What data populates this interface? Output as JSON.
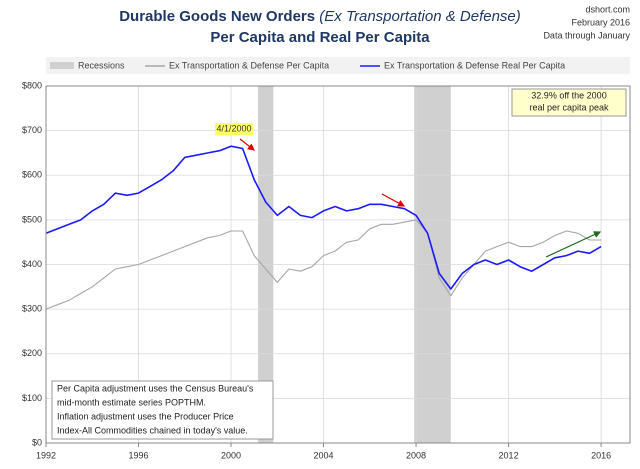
{
  "chart_data": {
    "type": "line",
    "title": "Durable Goods New Orders",
    "title_italic": "(Ex Transportation & Defense)",
    "subtitle": "Per Capita and Real Per Capita",
    "source_lines": [
      "dshort.com",
      "February 2016",
      "Data through January"
    ],
    "recession_label": "Recessions",
    "recessions": [
      [
        2001.17,
        2001.83
      ],
      [
        2007.92,
        2009.5
      ]
    ],
    "x": [
      1992,
      1992.5,
      1993,
      1993.5,
      1994,
      1994.5,
      1995,
      1995.5,
      1996,
      1996.5,
      1997,
      1997.5,
      1998,
      1998.5,
      1999,
      1999.5,
      2000,
      2000.5,
      2001,
      2001.5,
      2002,
      2002.5,
      2003,
      2003.5,
      2004,
      2004.5,
      2005,
      2005.5,
      2006,
      2006.5,
      2007,
      2007.5,
      2008,
      2008.5,
      2009,
      2009.5,
      2010,
      2010.5,
      2011,
      2011.5,
      2012,
      2012.5,
      2013,
      2013.5,
      2014,
      2014.5,
      2015,
      2015.5,
      2016
    ],
    "series": [
      {
        "name": "Ex Transportation & Defense Per Capita",
        "color": "#a6a6a6",
        "values": [
          300,
          310,
          320,
          335,
          350,
          370,
          390,
          395,
          400,
          410,
          420,
          430,
          440,
          450,
          460,
          465,
          475,
          475,
          420,
          390,
          360,
          390,
          385,
          395,
          420,
          430,
          450,
          455,
          480,
          490,
          490,
          495,
          500,
          470,
          370,
          330,
          370,
          400,
          430,
          440,
          450,
          440,
          440,
          450,
          465,
          475,
          470,
          455,
          455
        ]
      },
      {
        "name": "Ex Transportation & Defense Real Per Capita",
        "color": "#1a1aff",
        "values": [
          470,
          480,
          490,
          500,
          520,
          535,
          560,
          555,
          560,
          575,
          590,
          610,
          640,
          645,
          650,
          655,
          665,
          660,
          590,
          540,
          510,
          530,
          510,
          505,
          520,
          530,
          520,
          525,
          535,
          535,
          530,
          525,
          510,
          470,
          380,
          345,
          380,
          400,
          410,
          400,
          410,
          395,
          385,
          400,
          415,
          420,
          430,
          425,
          440
        ]
      }
    ],
    "xlim": [
      1992,
      2017.25
    ],
    "xticks": [
      1992,
      1996,
      2000,
      2004,
      2008,
      2012,
      2016
    ],
    "ylim": [
      0,
      800
    ],
    "yticks": [
      {
        "value": 0,
        "label": "$0"
      },
      {
        "value": 100,
        "label": "$100"
      },
      {
        "value": 200,
        "label": "$200"
      },
      {
        "value": 300,
        "label": "$300"
      },
      {
        "value": 400,
        "label": "$400"
      },
      {
        "value": 500,
        "label": "$500"
      },
      {
        "value": 600,
        "label": "$600"
      },
      {
        "value": 700,
        "label": "$700"
      },
      {
        "value": 800,
        "label": "$800"
      }
    ],
    "grid": true,
    "peak_label": "4/1/2000",
    "callout_lines": [
      "32.9% off the 2000",
      "real per capita peak"
    ],
    "footnote_lines": [
      "Per Capita adjustment uses the Census Bureau's",
      "mid-month estimate series POPTHM.",
      "Inflation adjustment uses the Producer Price",
      "Index-All Commodities chained in today's value."
    ]
  }
}
